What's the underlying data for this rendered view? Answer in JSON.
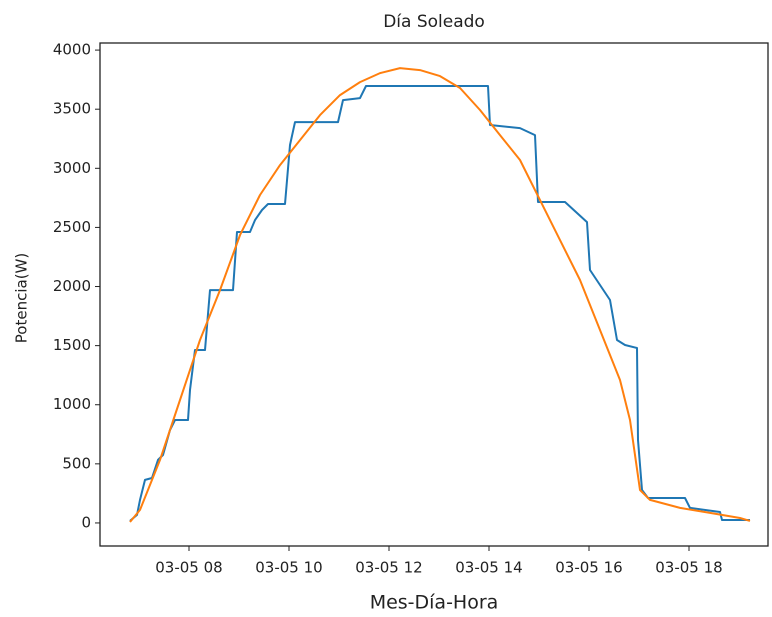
{
  "chart_data": {
    "type": "line",
    "title": "Día Soleado",
    "x_label": "Mes-Día-Hora",
    "y_label": "Potencia(W)",
    "xlim": [
      6.22,
      19.58
    ],
    "ylim": [
      -195,
      4060
    ],
    "xticks": [
      {
        "value": 8,
        "label": "03-05 08"
      },
      {
        "value": 10,
        "label": "03-05 10"
      },
      {
        "value": 12,
        "label": "03-05 12"
      },
      {
        "value": 14,
        "label": "03-05 14"
      },
      {
        "value": 16,
        "label": "03-05 16"
      },
      {
        "value": 18,
        "label": "03-05 18"
      }
    ],
    "yticks": [
      0,
      500,
      1000,
      1500,
      2000,
      2500,
      3000,
      3500,
      4000
    ],
    "series": [
      {
        "color": "#1f77b4",
        "x": [
          6.82,
          6.96,
          7.02,
          7.12,
          7.26,
          7.38,
          7.48,
          7.62,
          7.72,
          7.98,
          8.02,
          8.12,
          8.32,
          8.42,
          8.88,
          8.96,
          9.22,
          9.32,
          9.46,
          9.58,
          9.92,
          10.02,
          10.12,
          10.98,
          11.08,
          11.42,
          11.54,
          13.98,
          14.02,
          14.62,
          14.92,
          14.98,
          15.52,
          15.96,
          16.02,
          16.22,
          16.42,
          16.56,
          16.72,
          16.96,
          16.98,
          17.06,
          17.18,
          17.92,
          18.02,
          18.62,
          18.66,
          19.22
        ],
        "values": [
          17,
          68,
          195,
          364,
          380,
          533,
          575,
          786,
          871,
          871,
          1125,
          1463,
          1463,
          1970,
          1970,
          2461,
          2461,
          2562,
          2647,
          2698,
          2698,
          3197,
          3391,
          3391,
          3577,
          3594,
          3696,
          3696,
          3366,
          3340,
          3281,
          2715,
          2715,
          2545,
          2140,
          2013,
          1886,
          1548,
          1505,
          1480,
          702,
          279,
          211,
          211,
          127,
          93,
          25,
          25
        ]
      },
      {
        "color": "#ff7f0e",
        "x": [
          6.82,
          7.02,
          7.42,
          7.82,
          8.22,
          8.62,
          9.02,
          9.42,
          9.82,
          10.22,
          10.62,
          11.02,
          11.42,
          11.82,
          12.22,
          12.62,
          13.02,
          13.42,
          13.82,
          14.22,
          14.62,
          15.02,
          15.42,
          15.82,
          16.22,
          16.62,
          16.82,
          17.02,
          17.22,
          17.82,
          18.42,
          19.02,
          19.22
        ],
        "values": [
          8,
          110,
          533,
          1040,
          1548,
          1970,
          2435,
          2774,
          3027,
          3239,
          3450,
          3619,
          3729,
          3805,
          3848,
          3831,
          3780,
          3679,
          3493,
          3281,
          3070,
          2731,
          2393,
          2055,
          1632,
          1209,
          871,
          279,
          195,
          127,
          85,
          42,
          17
        ]
      }
    ]
  }
}
